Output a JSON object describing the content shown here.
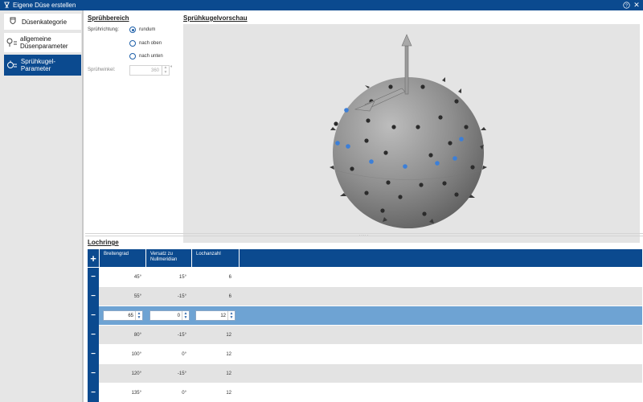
{
  "window": {
    "title": "Eigene Düse erstellen",
    "help_label": "?",
    "close_label": "✕"
  },
  "sidebar": {
    "items": [
      {
        "label": "Düsenkategorie",
        "icon": "nozzle-icon",
        "active": false
      },
      {
        "label": "allgemeine Düsenparameter",
        "icon": "nozzle-settings-icon",
        "active": false
      },
      {
        "label": "Sprühkugel-Parameter",
        "icon": "spray-ball-icon",
        "active": true
      }
    ]
  },
  "spray_area": {
    "title": "Sprühbereich",
    "direction_label": "Sprührichtung:",
    "options": [
      {
        "label": "rundum",
        "selected": true
      },
      {
        "label": "nach oben",
        "selected": false
      },
      {
        "label": "nach unten",
        "selected": false
      }
    ],
    "angle_label": "Sprühwinkel:",
    "angle_value": "360",
    "angle_unit": "°"
  },
  "preview": {
    "title": "Sprühkugelvorschau"
  },
  "splitter": {
    "handle": "....."
  },
  "holes": {
    "title": "Lochringe",
    "add_label": "+",
    "delete_label": "−",
    "columns": [
      "Breitengrad",
      "Versatz zu Nullmeridian",
      "Lochanzahl"
    ],
    "rows": [
      {
        "latitude": "45°",
        "offset": "15°",
        "count": "6"
      },
      {
        "latitude": "55°",
        "offset": "-15°",
        "count": "6"
      },
      {
        "latitude": "65",
        "offset": "0",
        "count": "12",
        "editing": true
      },
      {
        "latitude": "80°",
        "offset": "-15°",
        "count": "12"
      },
      {
        "latitude": "100°",
        "offset": "0°",
        "count": "12"
      },
      {
        "latitude": "120°",
        "offset": "-15°",
        "count": "12"
      },
      {
        "latitude": "135°",
        "offset": "0°",
        "count": "12"
      }
    ]
  },
  "colors": {
    "accent": "#0b4a8f",
    "selected_row": "#6ea3d3",
    "hole_blue": "#3c7fd8"
  }
}
